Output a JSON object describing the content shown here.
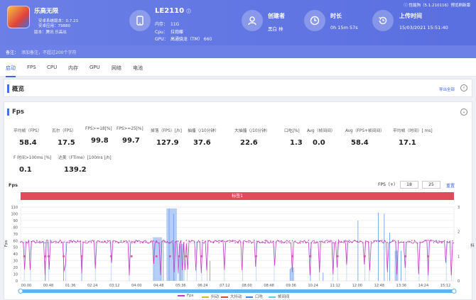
{
  "app": {
    "name": "乐高无限",
    "lines": [
      "安卓系统版本：0.7.23",
      "安卓应用：79880",
      "版本：腾讯 乐高出"
    ]
  },
  "version_text": "性能狗（5.1.210116）预览刷新版",
  "device": {
    "name": "LE2110",
    "info": [
      {
        "k": "内存：",
        "v": "11G"
      },
      {
        "k": "Cpu：",
        "v": "拉炮藤"
      },
      {
        "k": "GPU：",
        "v": "高通骁龙（TM） 660"
      }
    ]
  },
  "stats": [
    {
      "label": "创建者",
      "value": "黑白 林",
      "icon": "user-icon"
    },
    {
      "label": "时长",
      "value": "0h 15m 57s",
      "icon": "clock-icon"
    },
    {
      "label": "上传时间",
      "value": "15/03/2021 15:51:40",
      "icon": "history-icon"
    }
  ],
  "note": {
    "label": "备注：",
    "placeholder": "添加备注，不超过200个字符"
  },
  "tabs": [
    "启动",
    "FPS",
    "CPU",
    "内存",
    "GPU",
    "网络",
    "电池"
  ],
  "overview": {
    "title": "概览",
    "export": "导出全部"
  },
  "fps": {
    "title": "Fps",
    "metrics": [
      {
        "label": "平均帧（FPS）",
        "value": "58.4"
      },
      {
        "label": "瓦尔（FPS）",
        "value": "17.5"
      },
      {
        "label": "FPS>=18[%]",
        "value": "99.8"
      },
      {
        "label": "FPS>=25[%]",
        "value": "99.7"
      },
      {
        "label": "掉落（FPS）[/h]",
        "value": "127.9"
      },
      {
        "label": "抽搐（/10分钟）",
        "value": "37.6"
      },
      {
        "label": "大抽搐（/10分钟）",
        "value": "22.6"
      },
      {
        "label": "口吃[%]",
        "value": "1.3"
      },
      {
        "label": "Avg（帧间间）",
        "value": "0.0"
      },
      {
        "label": "Avg（FPS+帧间间）",
        "value": "58.4"
      },
      {
        "label": "平均帧（时间）[ ms]",
        "value": "17.1"
      },
      {
        "label": "F 时间>100ms [%]",
        "value": "0.1"
      },
      {
        "label": "达美（FTime）[100ms [/h]",
        "value": "139.2"
      }
    ]
  },
  "chart_controls": {
    "title": "Fps",
    "fps_label": "FPS（+）",
    "min": "18",
    "max": "25",
    "reset": "重置"
  },
  "chart_data": {
    "type": "line",
    "title": "Fps",
    "band_label": "标签1",
    "ylabel": "Fps",
    "y2label": "抖",
    "ylim": [
      0,
      110
    ],
    "y2lim": [
      0,
      3
    ],
    "y_ticks": [
      0,
      10,
      20,
      30,
      40,
      50,
      60,
      70,
      80,
      90,
      100,
      110
    ],
    "y2_ticks": [
      0,
      1,
      2,
      3
    ],
    "x_ticks": [
      "00:00",
      "00:48",
      "01:36",
      "02:24",
      "03:12",
      "04:00",
      "04:48",
      "05:36",
      "06:24",
      "07:12",
      "08:00",
      "08:48",
      "09:36",
      "10:24",
      "11:12",
      "12:00",
      "12:48",
      "13:36",
      "14:24",
      "15:12"
    ],
    "duration_s": 957,
    "series": [
      {
        "name": "Fps",
        "color": "#c33fc2",
        "baseline": 58.4
      },
      {
        "name": "抖动",
        "color": "#e0b03a"
      },
      {
        "name": "大抖动",
        "color": "#e0453a"
      },
      {
        "name": "口吃",
        "color": "#3a86e0"
      },
      {
        "name": "帧间间",
        "color": "#5ad0f0"
      }
    ],
    "dips_s": [
      8,
      22,
      55,
      62,
      95,
      100,
      135,
      165,
      200,
      240,
      295,
      310,
      340,
      348,
      356,
      362,
      368,
      388,
      400,
      412,
      450,
      490,
      520,
      560,
      600,
      640,
      660,
      690,
      700,
      720,
      760,
      770,
      810,
      830,
      850,
      880,
      900,
      940,
      952
    ],
    "spikes_s": [
      [
        54,
        30
      ],
      [
        95,
        42
      ],
      [
        135,
        35
      ],
      [
        315,
        62
      ],
      [
        328,
        108
      ],
      [
        338,
        100
      ],
      [
        352,
        52
      ],
      [
        418,
        30
      ],
      [
        595,
        18
      ],
      [
        640,
        48
      ],
      [
        668,
        12
      ],
      [
        745,
        90
      ],
      [
        790,
        102
      ],
      [
        803,
        100
      ],
      [
        815,
        72
      ],
      [
        840,
        45
      ]
    ],
    "tall_blocks": [
      [
        292,
        312,
        65
      ],
      [
        322,
        345,
        108
      ],
      [
        350,
        360,
        55
      ],
      [
        596,
        604,
        20
      ],
      [
        826,
        834,
        45
      ]
    ],
    "jitter_markers_s": [
      8,
      55,
      62,
      95,
      135,
      200,
      245,
      300,
      330,
      350,
      365,
      400,
      520,
      600,
      640,
      700,
      760,
      850,
      900
    ]
  }
}
